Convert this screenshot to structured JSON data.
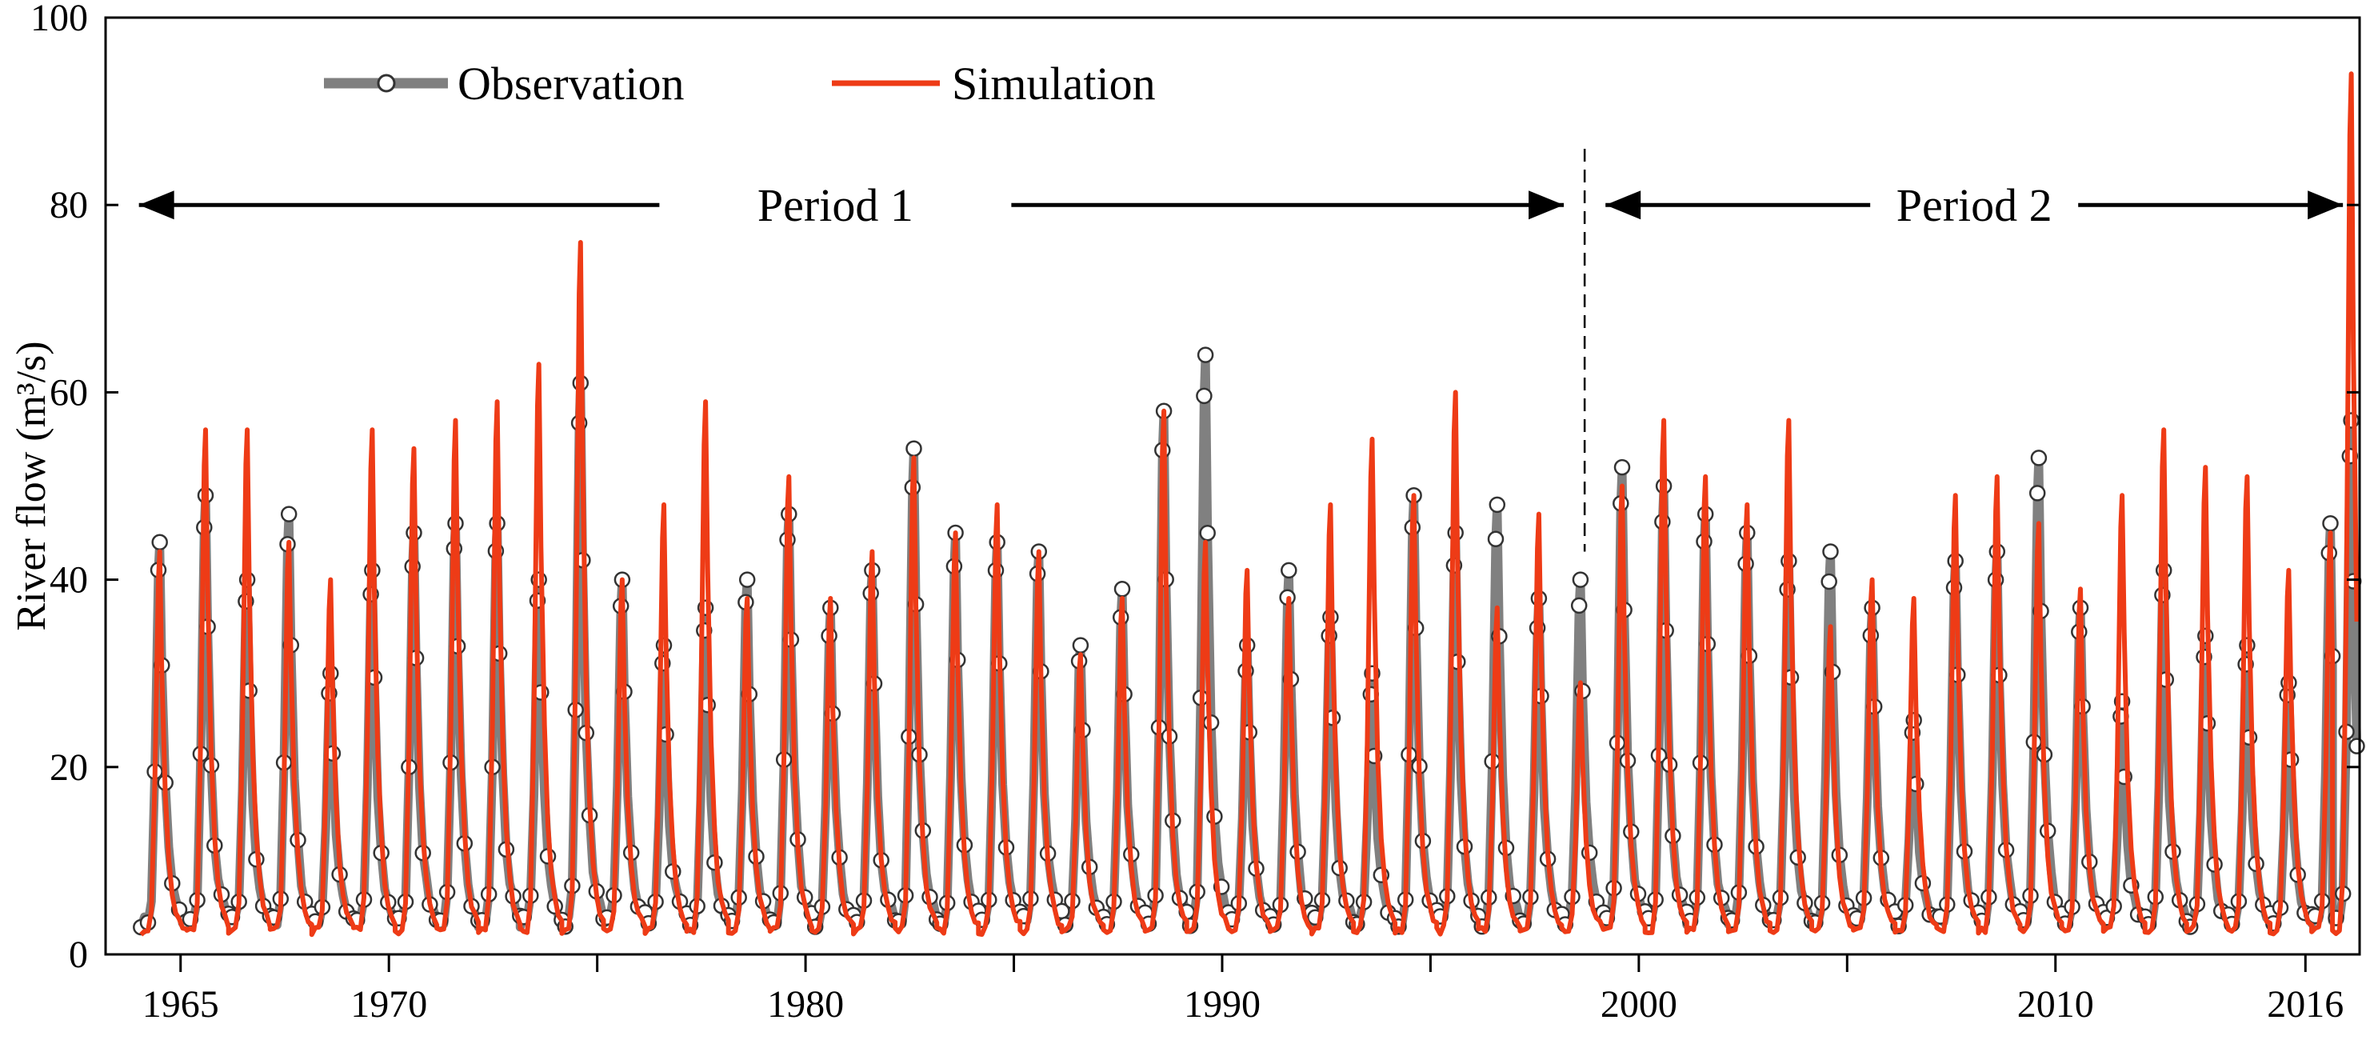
{
  "chart_data": {
    "type": "line",
    "title": "",
    "xlabel": "",
    "ylabel": "River flow (m³/s)",
    "ylim": [
      0,
      100
    ],
    "xlim": [
      1963.2,
      2017.3
    ],
    "y_ticks": [
      0,
      20,
      40,
      60,
      80,
      100
    ],
    "x_ticks": [
      1965,
      1970,
      1980,
      1990,
      2000,
      2010,
      2016
    ],
    "x_minor_ticks": [
      1975,
      1985,
      1995,
      2005
    ],
    "legend": {
      "placement": "top-left",
      "entries": [
        "Observation",
        "Simulation"
      ]
    },
    "colors": {
      "observation": "#808080",
      "simulation": "#ee3b16",
      "marker_edge": "#333333",
      "axis": "#000000"
    },
    "periods": {
      "divider_year": 1998.7,
      "period1": {
        "label": "Period 1",
        "start": 1964.0,
        "end": 1998.2
      },
      "period2": {
        "label": "Period 2",
        "start": 1999.2,
        "end": 2016.9
      }
    },
    "series": [
      {
        "name": "Observation",
        "annual_peaks": [
          {
            "year": 1964.5,
            "value": 44
          },
          {
            "year": 1965.6,
            "value": 49
          },
          {
            "year": 1966.6,
            "value": 40
          },
          {
            "year": 1967.6,
            "value": 47
          },
          {
            "year": 1968.6,
            "value": 30
          },
          {
            "year": 1969.6,
            "value": 41
          },
          {
            "year": 1970.6,
            "value": 45
          },
          {
            "year": 1971.6,
            "value": 46
          },
          {
            "year": 1972.6,
            "value": 46
          },
          {
            "year": 1973.6,
            "value": 40
          },
          {
            "year": 1974.6,
            "value": 61
          },
          {
            "year": 1975.6,
            "value": 40
          },
          {
            "year": 1976.6,
            "value": 33
          },
          {
            "year": 1977.6,
            "value": 37
          },
          {
            "year": 1978.6,
            "value": 40
          },
          {
            "year": 1979.6,
            "value": 47
          },
          {
            "year": 1980.6,
            "value": 37
          },
          {
            "year": 1981.6,
            "value": 41
          },
          {
            "year": 1982.6,
            "value": 54
          },
          {
            "year": 1983.6,
            "value": 45
          },
          {
            "year": 1984.6,
            "value": 44
          },
          {
            "year": 1985.6,
            "value": 43
          },
          {
            "year": 1986.6,
            "value": 33
          },
          {
            "year": 1987.6,
            "value": 39
          },
          {
            "year": 1988.6,
            "value": 58
          },
          {
            "year": 1989.6,
            "value": 64
          },
          {
            "year": 1990.6,
            "value": 33
          },
          {
            "year": 1991.6,
            "value": 41
          },
          {
            "year": 1992.6,
            "value": 36
          },
          {
            "year": 1993.6,
            "value": 30
          },
          {
            "year": 1994.6,
            "value": 49
          },
          {
            "year": 1995.6,
            "value": 45
          },
          {
            "year": 1996.6,
            "value": 48
          },
          {
            "year": 1997.6,
            "value": 38
          },
          {
            "year": 1998.6,
            "value": 40
          },
          {
            "year": 1999.6,
            "value": 52
          },
          {
            "year": 2000.6,
            "value": 50
          },
          {
            "year": 2001.6,
            "value": 47
          },
          {
            "year": 2002.6,
            "value": 45
          },
          {
            "year": 2003.6,
            "value": 42
          },
          {
            "year": 2004.6,
            "value": 43
          },
          {
            "year": 2005.6,
            "value": 37
          },
          {
            "year": 2006.6,
            "value": 25
          },
          {
            "year": 2007.6,
            "value": 42
          },
          {
            "year": 2008.6,
            "value": 43
          },
          {
            "year": 2009.6,
            "value": 53
          },
          {
            "year": 2010.6,
            "value": 37
          },
          {
            "year": 2011.6,
            "value": 27
          },
          {
            "year": 2012.6,
            "value": 41
          },
          {
            "year": 2013.6,
            "value": 34
          },
          {
            "year": 2014.6,
            "value": 33
          },
          {
            "year": 2015.6,
            "value": 29
          },
          {
            "year": 2016.6,
            "value": 46
          },
          {
            "year": 2017.1,
            "value": 57
          }
        ]
      },
      {
        "name": "Simulation",
        "annual_peaks": [
          {
            "year": 1964.5,
            "value": 43
          },
          {
            "year": 1965.6,
            "value": 56
          },
          {
            "year": 1966.6,
            "value": 56
          },
          {
            "year": 1967.6,
            "value": 44
          },
          {
            "year": 1968.6,
            "value": 40
          },
          {
            "year": 1969.6,
            "value": 56
          },
          {
            "year": 1970.6,
            "value": 54
          },
          {
            "year": 1971.6,
            "value": 57
          },
          {
            "year": 1972.6,
            "value": 59
          },
          {
            "year": 1973.6,
            "value": 63
          },
          {
            "year": 1974.6,
            "value": 76
          },
          {
            "year": 1975.6,
            "value": 40
          },
          {
            "year": 1976.6,
            "value": 48
          },
          {
            "year": 1977.6,
            "value": 59
          },
          {
            "year": 1978.6,
            "value": 38
          },
          {
            "year": 1979.6,
            "value": 51
          },
          {
            "year": 1980.6,
            "value": 38
          },
          {
            "year": 1981.6,
            "value": 43
          },
          {
            "year": 1982.6,
            "value": 53
          },
          {
            "year": 1983.6,
            "value": 45
          },
          {
            "year": 1984.6,
            "value": 48
          },
          {
            "year": 1985.6,
            "value": 43
          },
          {
            "year": 1986.6,
            "value": 32
          },
          {
            "year": 1987.6,
            "value": 38
          },
          {
            "year": 1988.6,
            "value": 58
          },
          {
            "year": 1989.6,
            "value": 44
          },
          {
            "year": 1990.6,
            "value": 41
          },
          {
            "year": 1991.6,
            "value": 38
          },
          {
            "year": 1992.6,
            "value": 48
          },
          {
            "year": 1993.6,
            "value": 55
          },
          {
            "year": 1994.6,
            "value": 49
          },
          {
            "year": 1995.6,
            "value": 60
          },
          {
            "year": 1996.6,
            "value": 37
          },
          {
            "year": 1997.6,
            "value": 47
          },
          {
            "year": 1998.6,
            "value": 29
          },
          {
            "year": 1999.6,
            "value": 50
          },
          {
            "year": 2000.6,
            "value": 57
          },
          {
            "year": 2001.6,
            "value": 51
          },
          {
            "year": 2002.6,
            "value": 48
          },
          {
            "year": 2003.6,
            "value": 57
          },
          {
            "year": 2004.6,
            "value": 35
          },
          {
            "year": 2005.6,
            "value": 40
          },
          {
            "year": 2006.6,
            "value": 38
          },
          {
            "year": 2007.6,
            "value": 49
          },
          {
            "year": 2008.6,
            "value": 51
          },
          {
            "year": 2009.6,
            "value": 46
          },
          {
            "year": 2010.6,
            "value": 39
          },
          {
            "year": 2011.6,
            "value": 49
          },
          {
            "year": 2012.6,
            "value": 56
          },
          {
            "year": 2013.6,
            "value": 52
          },
          {
            "year": 2014.6,
            "value": 51
          },
          {
            "year": 2015.6,
            "value": 41
          },
          {
            "year": 2016.6,
            "value": 45
          },
          {
            "year": 2017.1,
            "value": 94
          }
        ]
      }
    ]
  }
}
